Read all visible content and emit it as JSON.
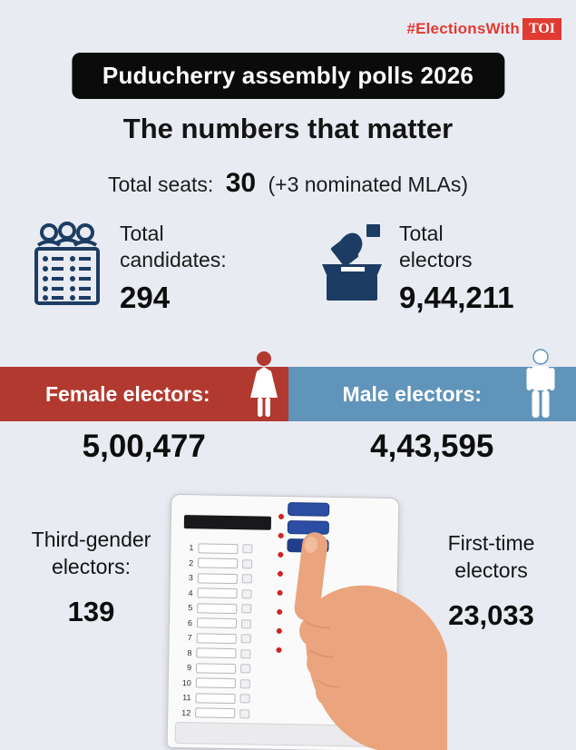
{
  "header": {
    "hashtag": "#ElectionsWith",
    "logo": "TOI",
    "title": "Puducherry assembly polls 2026",
    "subtitle": "The numbers that matter",
    "seats_prefix": "Total seats:",
    "seats_value": "30",
    "seats_suffix": "(+3 nominated MLAs)"
  },
  "stats": {
    "candidates": {
      "label": "Total candidates:",
      "value": "294"
    },
    "electors": {
      "label": "Total electors",
      "value": "9,44,211"
    }
  },
  "gender": {
    "female": {
      "label": "Female electors:",
      "value": "5,00,477"
    },
    "male": {
      "label": "Male electors:",
      "value": "4,43,595"
    }
  },
  "bottom": {
    "third_gender": {
      "label": "Third-gender electors:",
      "value": "139"
    },
    "first_time": {
      "label": "First-time electors",
      "value": "23,033"
    }
  },
  "evm": {
    "rows": [
      "1",
      "2",
      "3",
      "4",
      "5",
      "6",
      "7",
      "8",
      "9",
      "10",
      "11",
      "12"
    ]
  },
  "colors": {
    "background": "#e9ebf2",
    "banner": "#0b0b0b",
    "female": "#b2392f",
    "male": "#6094ba",
    "navy": "#1d3c63",
    "toi": "#e03b33",
    "skin": "#eaa57e",
    "evmblue": "#2b4da2"
  }
}
